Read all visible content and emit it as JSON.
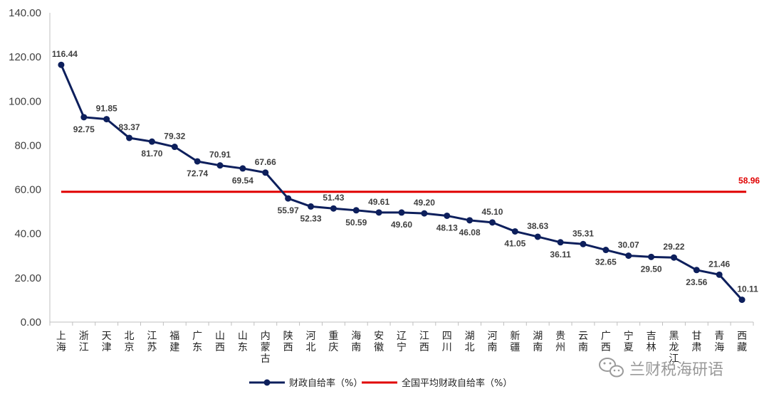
{
  "chart_data": {
    "type": "line",
    "categories": [
      "上海",
      "浙江",
      "天津",
      "北京",
      "江苏",
      "福建",
      "广东",
      "山西",
      "山东",
      "内蒙古",
      "陕西",
      "河北",
      "重庆",
      "海南",
      "安徽",
      "辽宁",
      "江西",
      "四川",
      "湖北",
      "河南",
      "新疆",
      "湖南",
      "贵州",
      "云南",
      "广西",
      "宁夏",
      "吉林",
      "黑龙江",
      "甘肃",
      "青海",
      "西藏"
    ],
    "series": [
      {
        "name": "财政自给率（%）",
        "values": [
          116.44,
          92.75,
          91.85,
          83.37,
          81.7,
          79.32,
          72.74,
          70.91,
          69.54,
          67.66,
          55.97,
          52.33,
          51.43,
          50.59,
          49.61,
          49.6,
          49.2,
          48.13,
          46.08,
          45.1,
          41.05,
          38.63,
          36.11,
          35.31,
          32.65,
          30.07,
          29.5,
          29.22,
          23.56,
          21.46,
          10.11
        ],
        "value_labels": [
          "116.44",
          "92.75",
          "91.85",
          "83.37",
          "81.70",
          "79.32",
          "72.74",
          "70.91",
          "69.54",
          "67.66",
          "55.97",
          "52.33",
          "51.43",
          "50.59",
          "49.61",
          "49.60",
          "49.20",
          "48.13",
          "46.08",
          "45.10",
          "41.05",
          "38.63",
          "36.11",
          "35.31",
          "32.65",
          "30.07",
          "29.50",
          "29.22",
          "23.56",
          "21.46",
          "10.11"
        ],
        "color": "#0d1f5c"
      },
      {
        "name": "全国平均财政自给率（%）",
        "value": 58.96,
        "value_label": "58.96",
        "color": "#e00000"
      }
    ],
    "ylim": [
      0,
      140
    ],
    "yticks": [
      "0.00",
      "20.00",
      "40.00",
      "60.00",
      "80.00",
      "100.00",
      "120.00",
      "140.00"
    ],
    "grid": false,
    "legend_position": "bottom-center"
  },
  "watermark": {
    "text": "兰财税海研语",
    "icon": "wechat-icon",
    "color": "#9a9a9a"
  }
}
